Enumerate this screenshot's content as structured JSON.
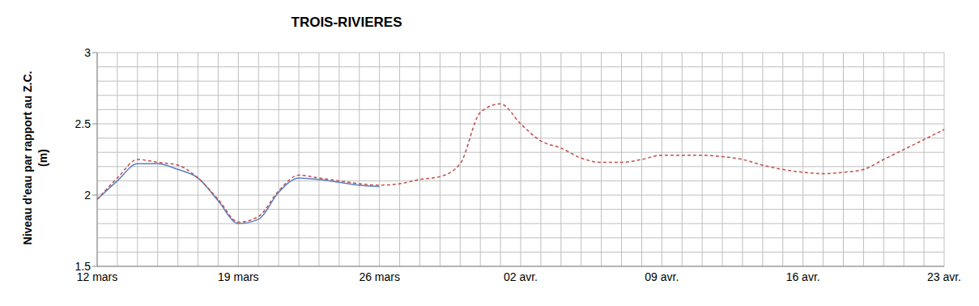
{
  "chart_data": {
    "type": "line",
    "title": "TROIS-RIVIERES",
    "ylabel": "Niveau d'eau par rapport au Z.C. (m)",
    "categories": [
      "12 mars",
      null,
      null,
      null,
      null,
      null,
      null,
      "19 mars",
      null,
      null,
      null,
      null,
      null,
      null,
      "26 mars",
      null,
      null,
      null,
      null,
      null,
      null,
      "02 avr.",
      null,
      null,
      null,
      null,
      null,
      null,
      "09 avr.",
      null,
      null,
      null,
      null,
      null,
      null,
      "16 avr.",
      null,
      null,
      null,
      null,
      null,
      null,
      "23 avr."
    ],
    "series": [
      {
        "color": "#5b7fc7",
        "line_style": "solid",
        "values": [
          1.97,
          2.1,
          2.22,
          2.22,
          2.18,
          2.12,
          1.96,
          1.8,
          1.83,
          2.02,
          2.12,
          2.11,
          2.09,
          2.07,
          2.06,
          null,
          null,
          null,
          null,
          null,
          null,
          null,
          null,
          null,
          null,
          null,
          null,
          null,
          null,
          null,
          null,
          null,
          null,
          null,
          null,
          null,
          null,
          null,
          null,
          null,
          null,
          null,
          null
        ]
      },
      {
        "color": "#c0504d",
        "line_style": "dashed",
        "values": [
          1.97,
          2.12,
          2.25,
          2.23,
          2.21,
          2.12,
          1.97,
          1.81,
          1.85,
          2.03,
          2.14,
          2.12,
          2.1,
          2.08,
          2.07,
          2.08,
          2.11,
          2.13,
          2.22,
          2.58,
          2.64,
          2.5,
          2.38,
          2.33,
          2.26,
          2.23,
          2.23,
          2.25,
          2.28,
          2.28,
          2.28,
          2.27,
          2.25,
          2.21,
          2.18,
          2.16,
          2.15,
          2.16,
          2.18,
          2.25,
          2.32,
          2.39,
          2.46
        ]
      }
    ],
    "ylim": [
      1.5,
      3
    ],
    "yticks": [
      1.5,
      2,
      2.5,
      3
    ],
    "grid": true
  }
}
